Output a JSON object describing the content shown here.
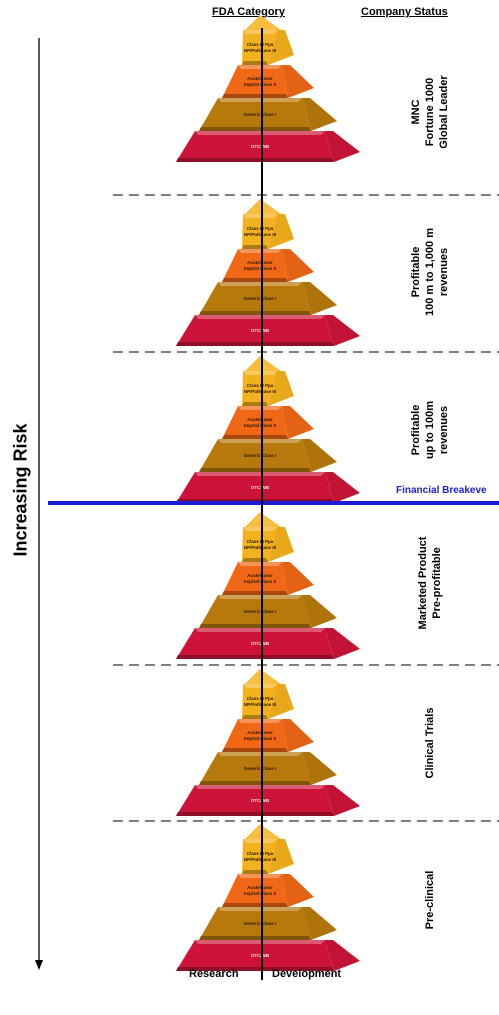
{
  "headers": {
    "fda_category": "FDA Category",
    "company_status": "Company Status"
  },
  "axis": {
    "risk_label": "Increasing Risk"
  },
  "breakeven": {
    "label": "Financial Breakeve"
  },
  "footer": {
    "left": "Research",
    "right": "Development"
  },
  "pyramid_tiers": [
    {
      "lines": [
        "Class III Ppa",
        "NP/Pathcase III"
      ]
    },
    {
      "lines": [
        "Acute/Laser",
        "Imprtal Class II"
      ]
    },
    {
      "lines": [
        "Generic Class I"
      ]
    },
    {
      "lines": [
        "OTC/WB"
      ]
    }
  ],
  "stages": [
    {
      "status": [
        "MNC",
        "Fortune 1000",
        "Global Leader"
      ]
    },
    {
      "status": [
        "Profitable",
        "100 m to 1,000 m",
        "revenues"
      ]
    },
    {
      "status": [
        "Profitable",
        "up to 100m",
        "revenues"
      ]
    },
    {
      "status": [
        "Marketed Product",
        "Pre-profitable"
      ]
    },
    {
      "status": [
        "Clinical Trials"
      ]
    },
    {
      "status": [
        "Pre-clinical"
      ]
    }
  ],
  "colors": {
    "tier1": "#f3b21c",
    "tier2": "#f06716",
    "tier3": "#b7790c",
    "tier4": "#cd1438",
    "breakeven_line": "#1c1cd6"
  }
}
